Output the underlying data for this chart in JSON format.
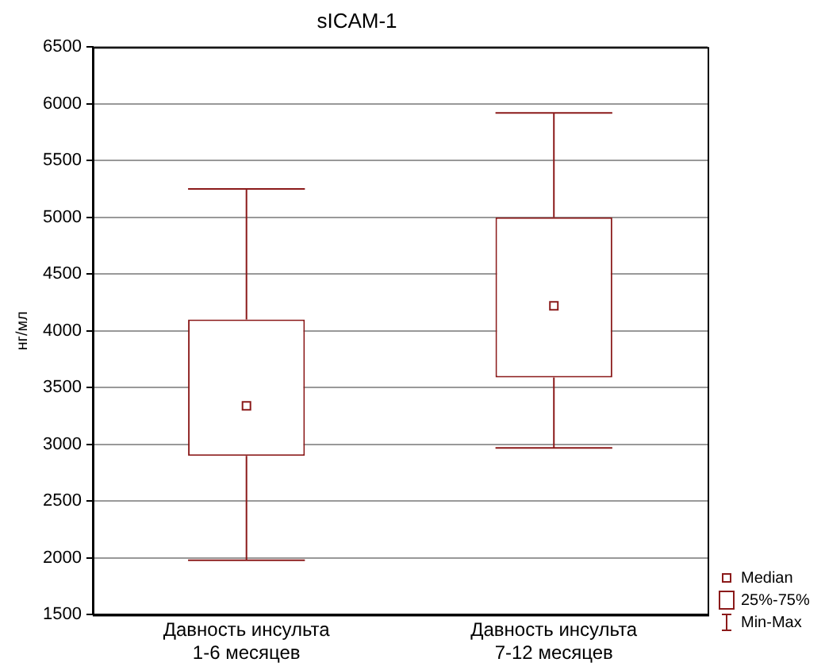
{
  "chart_data": {
    "type": "box",
    "title": "sICAM-1",
    "ylabel": "нг/мл",
    "categories": [
      "Давность инсульта 1-6 месяцев",
      "Давность инсульта 7-12 месяцев"
    ],
    "series": [
      {
        "color": "#8b1a1a",
        "boxes": [
          {
            "low": 1980,
            "q1": 2900,
            "median": 3340,
            "q3": 4100,
            "high": 5250
          },
          {
            "low": 2970,
            "q1": 3590,
            "median": 4220,
            "q3": 5000,
            "high": 5920
          }
        ]
      }
    ],
    "ylim": [
      1500,
      6500
    ],
    "yticks": [
      1500,
      2000,
      2500,
      3000,
      3500,
      4000,
      4500,
      5000,
      5500,
      6000,
      6500
    ],
    "grid": "y",
    "marker": "square",
    "annotations": [
      "Median",
      "25%-75%",
      "Min-Max"
    ]
  }
}
